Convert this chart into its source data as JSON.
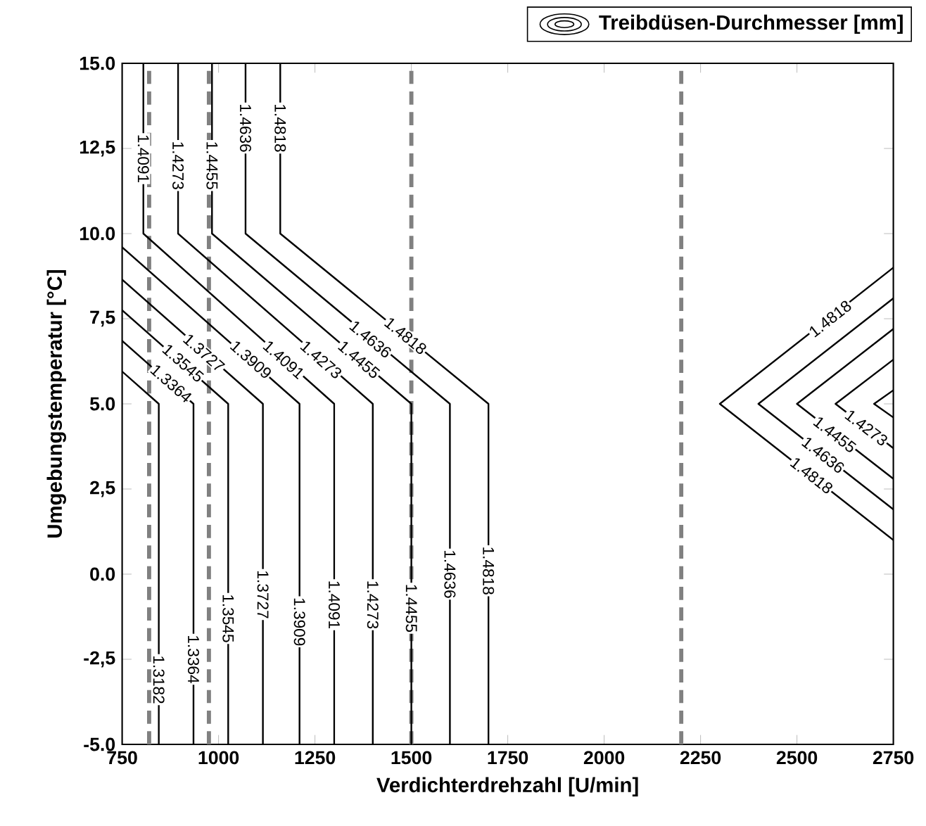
{
  "chart_data": {
    "type": "line",
    "xlabel": "Verdichterdrehzahl [U/min]",
    "ylabel": "Umgebungstemperatur [°C]",
    "legend_title": "Treibdüsen-Durchmesser [mm]",
    "marker": "none",
    "line_style": "solid",
    "xlim": [
      750,
      2750
    ],
    "ylim": [
      -5,
      15
    ],
    "xticks": [
      750,
      1000,
      1250,
      1500,
      1750,
      2000,
      2250,
      2500,
      2750
    ],
    "yticks": [
      {
        "value": -5,
        "label": "-5.0"
      },
      {
        "value": -2.5,
        "label": "-2,5"
      },
      {
        "value": 0,
        "label": "0.0"
      },
      {
        "value": 2.5,
        "label": "2,5"
      },
      {
        "value": 5,
        "label": "5.0"
      },
      {
        "value": 7.5,
        "label": "7,5"
      },
      {
        "value": 10,
        "label": "10.0"
      },
      {
        "value": 12.5,
        "label": "12,5"
      },
      {
        "value": 15,
        "label": "15.0"
      }
    ],
    "series": [
      {
        "color": "#000000",
        "x": [
          750,
          845,
          845
        ],
        "values": [
          5.95,
          5,
          -5
        ]
      },
      {
        "color": "#000000",
        "x": [
          750,
          935,
          935
        ],
        "values": [
          6.85,
          5,
          -5
        ]
      },
      {
        "color": "#000000",
        "x": [
          750,
          1025,
          1025
        ],
        "values": [
          7.75,
          5,
          -5
        ]
      },
      {
        "color": "#000000",
        "x": [
          750,
          1115,
          1115
        ],
        "values": [
          8.65,
          5,
          -5
        ]
      },
      {
        "color": "#000000",
        "x": [
          750,
          1210,
          1210
        ],
        "values": [
          9.6,
          5,
          -5
        ]
      },
      {
        "color": "#000000",
        "x": [
          805,
          805,
          1300,
          1300
        ],
        "values": [
          15,
          10,
          5,
          -5
        ]
      },
      {
        "color": "#000000",
        "x": [
          895,
          895,
          1400,
          1400
        ],
        "values": [
          15,
          10,
          5,
          -5
        ]
      },
      {
        "color": "#000000",
        "x": [
          983,
          983,
          1500,
          1500
        ],
        "values": [
          15,
          10,
          5,
          -5
        ]
      },
      {
        "color": "#000000",
        "x": [
          1070,
          1070,
          1600,
          1600
        ],
        "values": [
          15,
          10,
          5,
          -5
        ]
      },
      {
        "color": "#000000",
        "x": [
          1160,
          1160,
          1700,
          1700
        ],
        "values": [
          15,
          10,
          5,
          -5
        ]
      },
      {
        "color": "#000000",
        "x": [
          2750,
          2300,
          2750
        ],
        "values": [
          9,
          5,
          1
        ]
      },
      {
        "color": "#000000",
        "x": [
          2750,
          2400,
          2750
        ],
        "values": [
          8.1,
          5,
          1.9
        ]
      },
      {
        "color": "#000000",
        "x": [
          2750,
          2500,
          2750
        ],
        "values": [
          7.2,
          5,
          2.8
        ]
      },
      {
        "color": "#000000",
        "x": [
          2750,
          2600,
          2750
        ],
        "values": [
          6.3,
          5,
          3.7
        ]
      },
      {
        "color": "#000000",
        "x": [
          2750,
          2700,
          2750
        ],
        "values": [
          5.4,
          5,
          4.6
        ]
      }
    ],
    "ref_lines": [
      {
        "axis": "x",
        "value": 820,
        "color": "#808080",
        "line_style": "dashed"
      },
      {
        "axis": "x",
        "value": 975,
        "color": "#808080",
        "line_style": "dashed"
      },
      {
        "axis": "x",
        "value": 1500,
        "color": "#808080",
        "line_style": "dashed"
      },
      {
        "axis": "x",
        "value": 2200,
        "color": "#808080",
        "line_style": "dashed"
      }
    ],
    "annotations": [
      {
        "text": "1.4091",
        "x": 805,
        "y": 12.2
      },
      {
        "text": "1.4273",
        "x": 895,
        "y": 12.0
      },
      {
        "text": "1.4455",
        "x": 983,
        "y": 12.0
      },
      {
        "text": "1.4636",
        "x": 1070,
        "y": 13.1
      },
      {
        "text": "1.4818",
        "x": 1160,
        "y": 13.1
      },
      {
        "text": "1.4818",
        "x": 1485,
        "y": 7.0
      },
      {
        "text": "1.4636",
        "x": 1394,
        "y": 6.9
      },
      {
        "text": "1.4455",
        "x": 1364,
        "y": 6.3
      },
      {
        "text": "1.4273",
        "x": 1266,
        "y": 6.3
      },
      {
        "text": "1.4091",
        "x": 1169,
        "y": 6.3
      },
      {
        "text": "1.3909",
        "x": 1084,
        "y": 6.3
      },
      {
        "text": "1.3727",
        "x": 962,
        "y": 6.5
      },
      {
        "text": "1.3545",
        "x": 908,
        "y": 6.2
      },
      {
        "text": "1.3364",
        "x": 877,
        "y": 5.6
      },
      {
        "text": "1.3182",
        "x": 845,
        "y": -3.1
      },
      {
        "text": "1.3364",
        "x": 935,
        "y": -2.5
      },
      {
        "text": "1.3545",
        "x": 1025,
        "y": -1.3
      },
      {
        "text": "1.3727",
        "x": 1115,
        "y": -0.6
      },
      {
        "text": "1.3909",
        "x": 1210,
        "y": -1.4
      },
      {
        "text": "1.4091",
        "x": 1300,
        "y": -0.9
      },
      {
        "text": "1.4273",
        "x": 1400,
        "y": -0.9
      },
      {
        "text": "1.4455",
        "x": 1500,
        "y": -1.0
      },
      {
        "text": "1.4636",
        "x": 1600,
        "y": 0.0
      },
      {
        "text": "1.4818",
        "x": 1700,
        "y": 0.1
      },
      {
        "text": "1.4818",
        "x": 2586,
        "y": 7.5
      },
      {
        "text": "1.4273",
        "x": 2680,
        "y": 4.3
      },
      {
        "text": "1.4455",
        "x": 2598,
        "y": 4.1
      },
      {
        "text": "1.4636",
        "x": 2568,
        "y": 3.5
      },
      {
        "text": "1.4818",
        "x": 2538,
        "y": 2.9
      }
    ]
  }
}
